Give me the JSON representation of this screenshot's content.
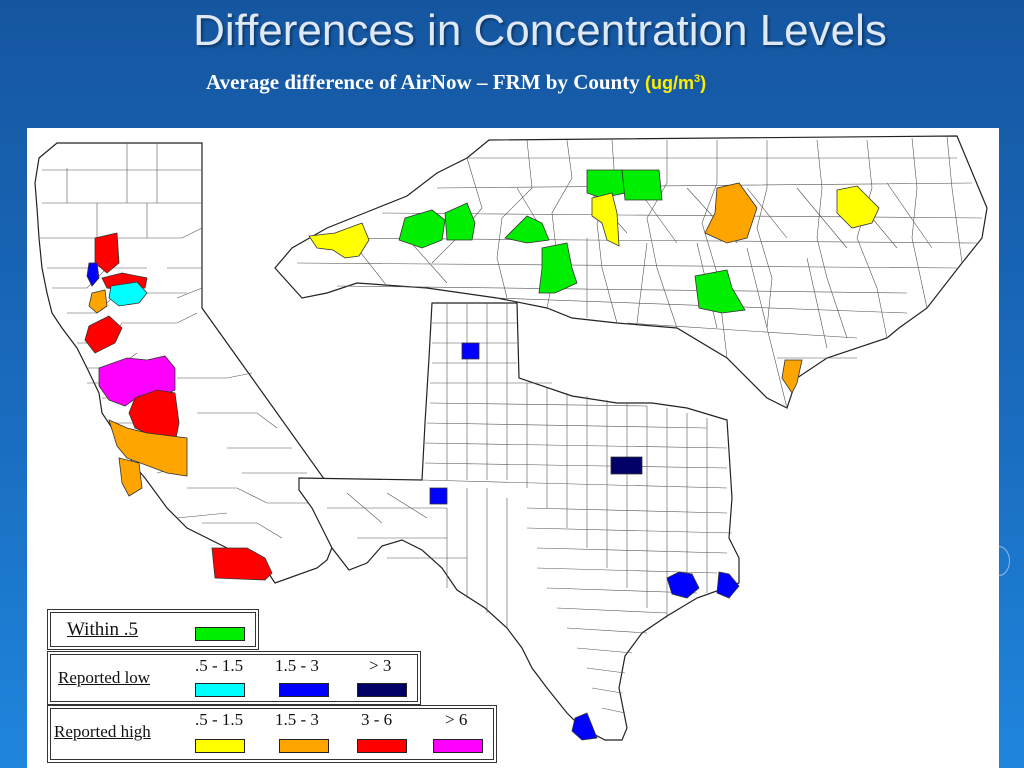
{
  "title": "Differences in Concentration Levels",
  "subtitle": {
    "text": "Average difference of AirNow – FRM by County",
    "unit_prefix": "(ug/m",
    "unit_sup": "3",
    "unit_suffix": ")"
  },
  "legend": {
    "within": {
      "label": "Within .5",
      "color": "#00ee00"
    },
    "low": {
      "label": "Reported low",
      "items": [
        {
          "range": ".5 - 1.5",
          "color": "#00ffff"
        },
        {
          "range": "1.5 - 3",
          "color": "#0000ff"
        },
        {
          "range": "> 3",
          "color": "#000066"
        }
      ]
    },
    "high": {
      "label": "Reported high",
      "items": [
        {
          "range": ".5 - 1.5",
          "color": "#ffff00"
        },
        {
          "range": "1.5 - 3",
          "color": "#ffa500"
        },
        {
          "range": "3 - 6",
          "color": "#ff0000"
        },
        {
          "range": "> 6",
          "color": "#ff00ff"
        }
      ]
    }
  },
  "colors": {
    "background": "#1a6cc0",
    "title": "#dfe9f6",
    "unit_highlight": "#ffee00"
  }
}
